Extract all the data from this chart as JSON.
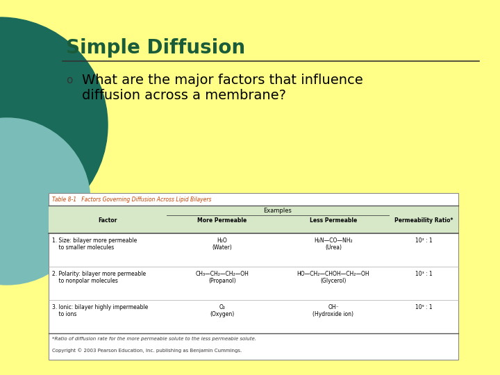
{
  "bg_color": "#FFFF88",
  "title": "Simple Diffusion",
  "title_color": "#1A5C3A",
  "title_fontsize": 20,
  "bullet_text_line1": "What are the major factors that influence",
  "bullet_text_line2": "diffusion across a membrane?",
  "bullet_color": "#000000",
  "bullet_fontsize": 14,
  "bullet_symbol": "o",
  "circle_large_color": "#1A6B5A",
  "circle_small_color": "#7ABCB8",
  "table_title": "Table 8-1   Factors Governing Diffusion Across Lipid Bilayers",
  "table_title_color": "#CC4400",
  "table_bg": "#FFFFFF",
  "table_header_bg": "#D6E8C8",
  "col_headers": [
    "Factor",
    "More Permeable",
    "Less Permeable",
    "Permeability Ratio*"
  ],
  "examples_header": "Examples",
  "row1_factor": "1. Size: bilayer more permeable\n    to smaller molecules",
  "row1_more": "H₂O\n(Water)",
  "row1_less": "H₂N—CO—NH₂\n(Urea)",
  "row1_ratio": "10² : 1",
  "row2_factor": "2. Polarity: bilayer more permeable\n    to nonpolar molecules",
  "row2_more": "CH₃—CH₂—CH₂—OH\n(Propanol)",
  "row2_less": "HO—CH₂—CHOH—CH₂—OH\n(Glycerol)",
  "row2_ratio": "10³ : 1",
  "row3_factor": "3. Ionic: bilayer highly impermeable\n    to ions",
  "row3_more": "O₂\n(Oxygen)",
  "row3_less": "OH⁻\n(Hydroxide ion)",
  "row3_ratio": "10⁹ : 1",
  "footnote": "*Ratio of diffusion rate for the more permeable solute to the less permeable solute.",
  "copyright": "Copyright © 2003 Pearson Education, Inc. publishing as Benjamin Cummings."
}
